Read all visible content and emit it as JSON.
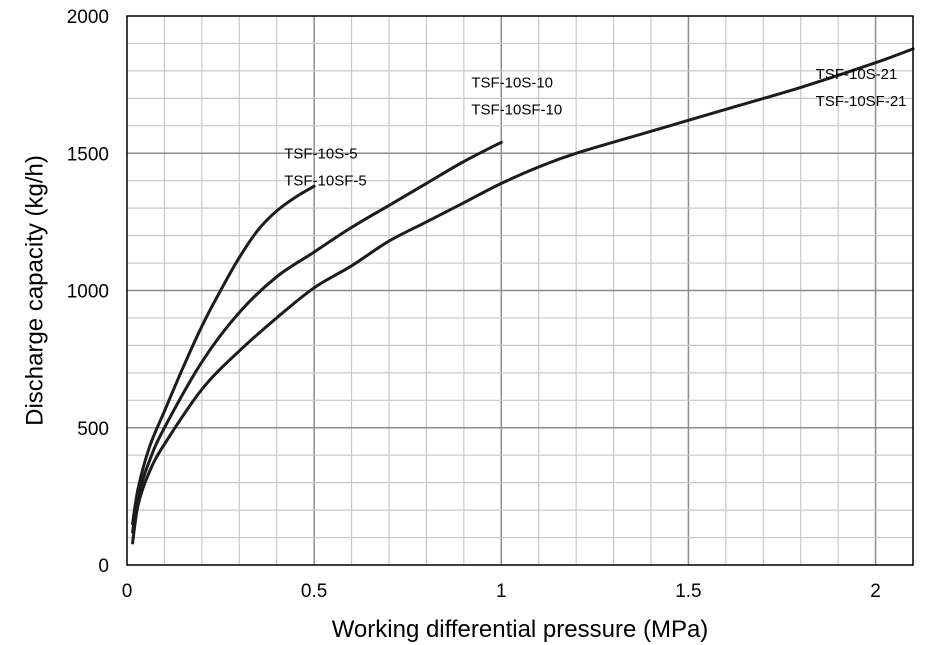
{
  "chart_data": {
    "type": "line",
    "title": "",
    "xlabel": "Working differential pressure (MPa)",
    "ylabel": "Discharge capacity (kg/h)",
    "xlim": [
      0,
      2.1
    ],
    "ylim": [
      0,
      2000
    ],
    "x_ticks": [
      0,
      0.5,
      1,
      1.5,
      2
    ],
    "x_tick_labels": [
      "0",
      "0.5",
      "1",
      "1.5",
      "2"
    ],
    "y_ticks": [
      0,
      500,
      1000,
      1500,
      2000
    ],
    "y_tick_labels": [
      "0",
      "500",
      "1000",
      "1500",
      "2000"
    ],
    "minor_grid_x_step": 0.1,
    "minor_grid_y_step": 100,
    "grid": true,
    "legend": "none",
    "series": [
      {
        "labels": [
          "TSF-10S-5",
          "TSF-10SF-5"
        ],
        "x": [
          0.015,
          0.03,
          0.06,
          0.1,
          0.15,
          0.2,
          0.25,
          0.3,
          0.35,
          0.4,
          0.45,
          0.5
        ],
        "y": [
          150,
          280,
          430,
          560,
          720,
          870,
          1000,
          1120,
          1220,
          1290,
          1340,
          1380
        ]
      },
      {
        "labels": [
          "TSF-10S-10",
          "TSF-10SF-10"
        ],
        "x": [
          0.015,
          0.03,
          0.06,
          0.1,
          0.2,
          0.3,
          0.4,
          0.5,
          0.6,
          0.7,
          0.8,
          0.9,
          1.0
        ],
        "y": [
          120,
          250,
          380,
          500,
          740,
          920,
          1050,
          1140,
          1230,
          1310,
          1390,
          1470,
          1540
        ]
      },
      {
        "labels": [
          "TSF-10S-21",
          "TSF-10SF-21"
        ],
        "x": [
          0.015,
          0.03,
          0.06,
          0.1,
          0.2,
          0.3,
          0.4,
          0.5,
          0.6,
          0.7,
          0.8,
          0.9,
          1.0,
          1.1,
          1.2,
          1.4,
          1.6,
          1.8,
          2.0,
          2.1
        ],
        "y": [
          80,
          220,
          340,
          440,
          640,
          780,
          900,
          1010,
          1090,
          1180,
          1250,
          1320,
          1390,
          1450,
          1500,
          1580,
          1660,
          1740,
          1830,
          1880
        ]
      }
    ],
    "annotations": [
      {
        "lines": [
          "TSF-10S-5",
          "TSF-10SF-5"
        ],
        "x": 0.42,
        "y": 1480
      },
      {
        "lines": [
          "TSF-10S-10",
          "TSF-10SF-10"
        ],
        "x": 0.92,
        "y": 1740
      },
      {
        "lines": [
          "TSF-10S-21",
          "TSF-10SF-21"
        ],
        "x": 1.84,
        "y": 1770
      }
    ]
  }
}
